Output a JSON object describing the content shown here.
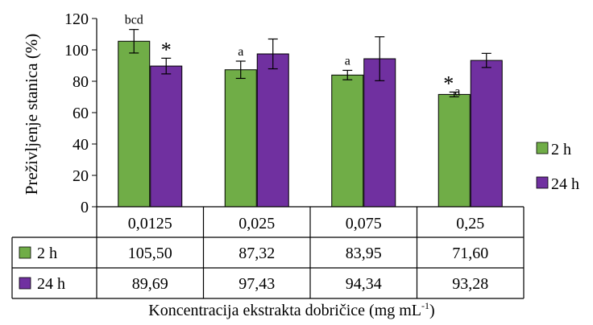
{
  "chart_data": {
    "type": "bar",
    "ylabel": "Preživljenje stanica (%)",
    "xlabel": "Koncentracija ekstrakta dobričice (mg mL",
    "xlabel_sup": "-1",
    "xlabel_close": ")",
    "ylim": [
      0,
      120
    ],
    "yticks": [
      0,
      20,
      40,
      60,
      80,
      100,
      120
    ],
    "ytick_labels": [
      "0",
      "20",
      "40",
      "60",
      "80",
      "100",
      "120"
    ],
    "categories": [
      "0,0125",
      "0,025",
      "0,075",
      "0,25"
    ],
    "series": [
      {
        "name": "2 h",
        "color": "#70ad47",
        "values": [
          105.5,
          87.32,
          83.95,
          71.6
        ],
        "value_labels": [
          "105,50",
          "87,32",
          "83,95",
          "71,60"
        ],
        "errors": [
          7.5,
          5.5,
          3.0,
          1.5
        ]
      },
      {
        "name": "24 h",
        "color": "#7030a0",
        "values": [
          89.69,
          97.43,
          94.34,
          93.28
        ],
        "value_labels": [
          "89,69",
          "97,43",
          "94,34",
          "93,28"
        ],
        "errors": [
          5.0,
          9.5,
          14.0,
          4.5
        ]
      }
    ],
    "annotations": [
      {
        "series": 0,
        "category": 0,
        "text": "bcd",
        "kind": "letter"
      },
      {
        "series": 1,
        "category": 0,
        "text": "*",
        "kind": "star"
      },
      {
        "series": 0,
        "category": 1,
        "text": "a",
        "kind": "letter"
      },
      {
        "series": 0,
        "category": 2,
        "text": "a",
        "kind": "letter"
      },
      {
        "series": 0,
        "category": 3,
        "text": "*",
        "kind": "star"
      },
      {
        "series": 0,
        "category": 3,
        "text": "a",
        "kind": "letter-low"
      }
    ],
    "legend": "right",
    "grid": false
  }
}
